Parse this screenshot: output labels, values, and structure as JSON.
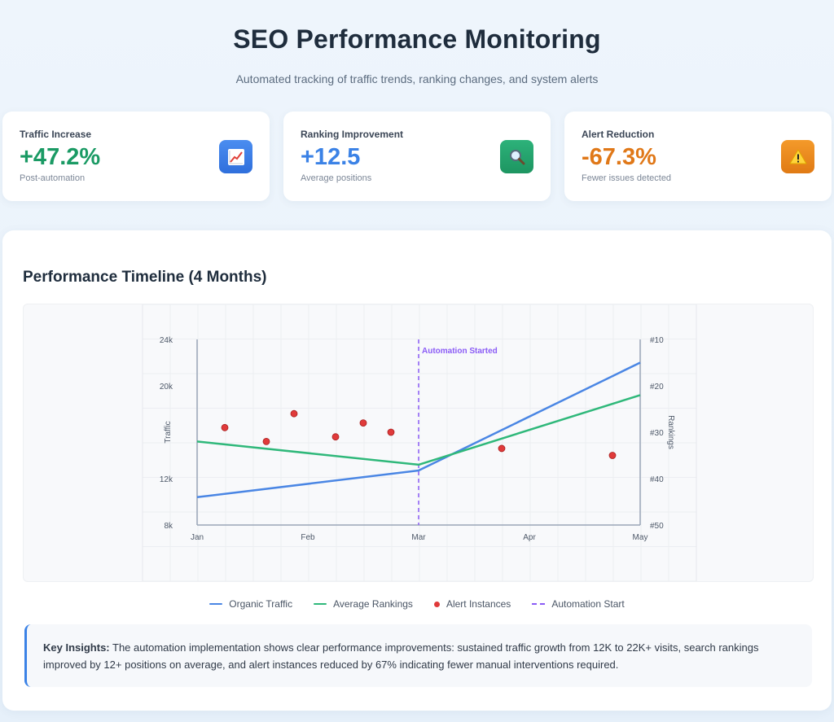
{
  "header": {
    "title": "SEO Performance Monitoring",
    "subtitle": "Automated tracking of traffic trends, ranking changes, and system alerts"
  },
  "stats": [
    {
      "label": "Traffic Increase",
      "value": "+47.2%",
      "sub": "Post-automation",
      "icon": "chart-increase-icon",
      "accent": "#1a9a64",
      "icon_bg": "#3e7ee8"
    },
    {
      "label": "Ranking Improvement",
      "value": "+12.5",
      "sub": "Average positions",
      "icon": "magnifier-icon",
      "accent": "#3b82e6",
      "icon_bg": "#22a36a"
    },
    {
      "label": "Alert Reduction",
      "value": "-67.3%",
      "sub": "Fewer issues detected",
      "icon": "warning-icon",
      "accent": "#e07818",
      "icon_bg": "#ee8a1e"
    }
  ],
  "panel": {
    "title": "Performance Timeline (4 Months)"
  },
  "chart_data": {
    "type": "line",
    "x_ticks": [
      "Jan",
      "Feb",
      "Mar",
      "Apr",
      "May"
    ],
    "y_left": {
      "label": "Traffic",
      "ticks": [
        "8k",
        "12k",
        "20k",
        "24k"
      ],
      "tick_values": [
        8000,
        12000,
        20000,
        24000
      ],
      "range": [
        8000,
        24000
      ]
    },
    "y_right": {
      "label": "Rankings",
      "ticks": [
        "#10",
        "#20",
        "#30",
        "#40",
        "#50"
      ],
      "tick_values": [
        10,
        20,
        30,
        40,
        50
      ],
      "range": [
        10,
        50
      ]
    },
    "series": [
      {
        "name": "Organic Traffic",
        "axis": "left",
        "color": "#4a86e4",
        "points": [
          {
            "x": 0,
            "y": 10400
          },
          {
            "x": 2,
            "y": 12700
          },
          {
            "x": 4,
            "y": 22000
          }
        ]
      },
      {
        "name": "Average Rankings",
        "axis": "right",
        "color": "#2fb87a",
        "points": [
          {
            "x": 0,
            "y": 32
          },
          {
            "x": 2,
            "y": 37
          },
          {
            "x": 4,
            "y": 22
          }
        ]
      }
    ],
    "alerts": {
      "name": "Alert Instances",
      "color": "#e03a3a",
      "axis": "right",
      "points": [
        {
          "x": 0.25,
          "y": 29
        },
        {
          "x": 0.625,
          "y": 32
        },
        {
          "x": 0.875,
          "y": 26
        },
        {
          "x": 1.25,
          "y": 31
        },
        {
          "x": 1.5,
          "y": 28
        },
        {
          "x": 1.75,
          "y": 30
        },
        {
          "x": 2.75,
          "y": 33.5
        },
        {
          "x": 3.75,
          "y": 35
        }
      ]
    },
    "automation_marker": {
      "name": "Automation Start",
      "x": 2,
      "label": "Automation Started",
      "color": "#8b5cf6"
    }
  },
  "legend": [
    "Organic Traffic",
    "Average Rankings",
    "Alert Instances",
    "Automation Start"
  ],
  "insights": {
    "heading": "Key Insights:",
    "text": " The automation implementation shows clear performance improvements: sustained traffic growth from 12K to 22K+ visits, search rankings improved by 12+ positions on average, and alert instances reduced by 67% indicating fewer manual interventions required."
  }
}
